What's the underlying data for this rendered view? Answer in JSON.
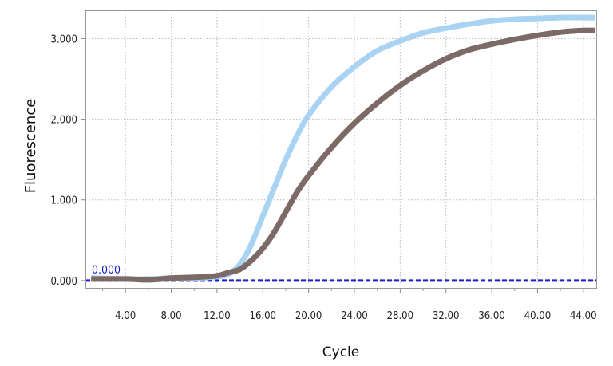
{
  "chart_data": {
    "type": "line",
    "xlabel": "Cycle",
    "ylabel": "Fluorescence",
    "xlim": [
      0.5,
      45.2
    ],
    "ylim": [
      -0.1,
      3.35
    ],
    "x_ticks": [
      "4.00",
      "8.00",
      "12.00",
      "16.00",
      "20.00",
      "24.00",
      "28.00",
      "32.00",
      "36.00",
      "40.00",
      "44.00"
    ],
    "y_ticks": [
      "0.000",
      "1.000",
      "2.000",
      "3.000"
    ],
    "grid": true,
    "threshold": {
      "label": "0.000",
      "value": 0.0,
      "color": "#1c1ccc"
    },
    "series": [
      {
        "color": "#a9d3f2",
        "x": [
          1,
          4,
          6,
          8,
          10,
          12,
          13,
          14,
          15,
          16,
          17,
          18,
          19,
          20,
          22,
          24,
          26,
          28,
          30,
          32,
          34,
          36,
          38,
          40,
          42,
          44,
          45
        ],
        "values": [
          0.03,
          0.02,
          0.02,
          0.03,
          0.03,
          0.05,
          0.08,
          0.2,
          0.45,
          0.8,
          1.15,
          1.5,
          1.8,
          2.05,
          2.4,
          2.65,
          2.85,
          2.97,
          3.07,
          3.13,
          3.18,
          3.22,
          3.24,
          3.25,
          3.26,
          3.26,
          3.26
        ]
      },
      {
        "color": "#7b6a66",
        "x": [
          1,
          4,
          6,
          8,
          10,
          12,
          13,
          14,
          15,
          16,
          17,
          18,
          19,
          20,
          22,
          24,
          26,
          28,
          30,
          32,
          34,
          36,
          38,
          40,
          42,
          44,
          45
        ],
        "values": [
          0.02,
          0.02,
          0.01,
          0.03,
          0.04,
          0.06,
          0.1,
          0.14,
          0.25,
          0.4,
          0.6,
          0.85,
          1.1,
          1.3,
          1.65,
          1.95,
          2.2,
          2.42,
          2.6,
          2.75,
          2.86,
          2.93,
          2.99,
          3.04,
          3.08,
          3.1,
          3.1
        ]
      }
    ]
  }
}
